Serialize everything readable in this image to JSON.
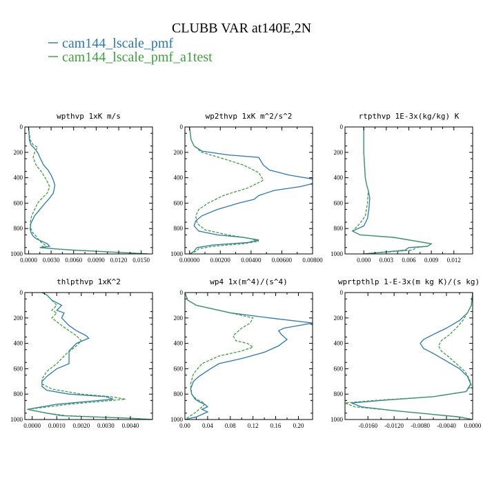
{
  "figure": {
    "title": "CLUBB VAR at140E,2N",
    "colors": {
      "series1": "#2878b4",
      "series2": "#3ca03c"
    }
  },
  "legend": [
    {
      "label": "cam144_lscale_pmf",
      "color": "#2878b4",
      "style": "solid"
    },
    {
      "label": "cam144_lscale_pmf_a1test",
      "color": "#3ca03c",
      "style": "dashed"
    }
  ],
  "chart_data": [
    {
      "type": "line",
      "title": "wpthvp  1xK m/s",
      "xlim": [
        -0.0005,
        0.0165
      ],
      "ylim": [
        1000,
        0
      ],
      "xticks": [
        "0.0000",
        "0.0030",
        "0.0060",
        "0.0090",
        "0.0120",
        "0.0150"
      ],
      "xtick_values": [
        0,
        0.003,
        0.006,
        0.009,
        0.012,
        0.015
      ],
      "yticks": [
        0,
        200,
        400,
        600,
        800,
        1000
      ],
      "y_axis": "left",
      "series": [
        {
          "name": "cam144_lscale_pmf",
          "x": [
            0.0,
            0.0001,
            0.0003,
            0.0008,
            0.0012,
            0.0015,
            0.002,
            0.0026,
            0.003,
            0.0033,
            0.0035,
            0.0033,
            0.0028,
            0.0022,
            0.0015,
            0.0008,
            0.0003,
            0.0002,
            0.0003,
            0.0006,
            0.001,
            0.0025,
            0.0028,
            0.0015,
            0.0035,
            0.006,
            0.016
          ],
          "y": [
            0,
            100,
            140,
            170,
            200,
            240,
            300,
            340,
            380,
            420,
            460,
            520,
            560,
            600,
            650,
            700,
            760,
            800,
            830,
            860,
            880,
            920,
            940,
            950,
            960,
            970,
            1000
          ]
        },
        {
          "name": "cam144_lscale_pmf_a1test",
          "x": [
            0.0,
            0.0002,
            0.0006,
            0.0012,
            0.0008,
            0.0006,
            0.001,
            0.0018,
            0.0024,
            0.0028,
            0.0025,
            0.0018,
            0.0012,
            0.0008,
            0.0004,
            0.0002,
            0.0003,
            0.0005,
            0.001,
            0.0015,
            0.0022,
            0.0016,
            0.0035,
            0.006,
            0.016
          ],
          "y": [
            0,
            100,
            140,
            160,
            200,
            240,
            300,
            360,
            420,
            470,
            520,
            560,
            600,
            650,
            700,
            760,
            800,
            830,
            860,
            900,
            930,
            950,
            960,
            970,
            1000
          ]
        }
      ]
    },
    {
      "type": "line",
      "title": "wp2thvp  1xK m^2/s^2",
      "xlim": [
        -0.0003,
        0.008
      ],
      "ylim": [
        1000,
        0
      ],
      "xticks": [
        "0.00000",
        "0.00200",
        "0.00400",
        "0.00600",
        "0.00800"
      ],
      "xtick_values": [
        0,
        0.002,
        0.004,
        0.006,
        0.008
      ],
      "yticks": [
        0,
        200,
        400,
        600,
        800,
        1000
      ],
      "y_axis": "left",
      "series": [
        {
          "name": "cam144_lscale_pmf",
          "x": [
            0.0,
            0.0001,
            0.0003,
            0.0008,
            0.0025,
            0.0045,
            0.0048,
            0.0052,
            0.0065,
            0.008,
            0.0082,
            0.0072,
            0.0055,
            0.0045,
            0.0042,
            0.0032,
            0.0018,
            0.0008,
            0.0004,
            0.0003,
            0.0006,
            0.0018,
            0.0035,
            0.0045,
            0.0038,
            0.0015,
            0.0005,
            0.0004,
            0.0003,
            0.0
          ],
          "y": [
            0,
            100,
            150,
            190,
            220,
            240,
            300,
            340,
            380,
            410,
            440,
            470,
            500,
            540,
            570,
            600,
            650,
            700,
            740,
            780,
            820,
            850,
            870,
            890,
            910,
            930,
            950,
            960,
            980,
            1000
          ]
        },
        {
          "name": "cam144_lscale_pmf_a1test",
          "x": [
            0.0,
            0.0001,
            0.0003,
            0.0008,
            0.0022,
            0.0035,
            0.0045,
            0.0048,
            0.0038,
            0.0022,
            0.0012,
            0.0006,
            0.0004,
            0.0005,
            0.001,
            0.0025,
            0.004,
            0.0045,
            0.0035,
            0.0015,
            0.0006,
            0.0004,
            0.0
          ],
          "y": [
            0,
            100,
            150,
            200,
            250,
            300,
            360,
            420,
            480,
            540,
            600,
            650,
            700,
            760,
            810,
            850,
            880,
            900,
            920,
            940,
            960,
            980,
            1000
          ]
        }
      ]
    },
    {
      "type": "line",
      "title": "rtpthvp  1E-3x(kg/kg) K",
      "xlim": [
        -0.0025,
        0.0145
      ],
      "ylim": [
        1000,
        0
      ],
      "xticks": [
        "0.000",
        "0.003",
        "0.006",
        "0.009",
        "0.012"
      ],
      "xtick_values": [
        0,
        0.003,
        0.006,
        0.009,
        0.012
      ],
      "yticks": [
        0,
        200,
        400,
        600,
        800,
        1000
      ],
      "y_axis": "left",
      "series": [
        {
          "name": "cam144_lscale_pmf",
          "x": [
            0.0,
            0.0,
            0.0001,
            0.0002,
            0.0004,
            0.0006,
            0.0008,
            0.0007,
            0.0005,
            0.0,
            -0.0015,
            -0.0005,
            0.004,
            0.009,
            0.0085,
            0.006,
            0.0055,
            0.0
          ],
          "y": [
            0,
            200,
            300,
            400,
            460,
            500,
            560,
            640,
            720,
            780,
            820,
            850,
            870,
            920,
            940,
            950,
            970,
            1000
          ]
        },
        {
          "name": "cam144_lscale_pmf_a1test",
          "x": [
            0.0,
            0.0,
            0.0001,
            0.0002,
            0.0004,
            0.0006,
            0.0005,
            0.0002,
            -0.0005,
            -0.0015,
            -0.0005,
            0.004,
            0.009,
            0.0085,
            0.007,
            0.0065,
            0.0
          ],
          "y": [
            0,
            200,
            300,
            400,
            460,
            500,
            600,
            700,
            760,
            820,
            850,
            870,
            920,
            940,
            950,
            970,
            1000
          ]
        }
      ]
    },
    {
      "type": "line",
      "title": "thlpthvp  1xK^2",
      "xlim": [
        -0.0003,
        0.0049
      ],
      "ylim": [
        1000,
        0
      ],
      "xticks": [
        "0.0000",
        "0.0010",
        "0.0020",
        "0.0030",
        "0.0040"
      ],
      "xtick_values": [
        0,
        0.001,
        0.002,
        0.003,
        0.004
      ],
      "yticks": [
        0,
        200,
        400,
        600,
        800,
        1000
      ],
      "y_axis": "left",
      "series": [
        {
          "name": "cam144_lscale_pmf",
          "x": [
            0.0004,
            0.0006,
            0.0008,
            0.0012,
            0.001,
            0.0013,
            0.0012,
            0.0015,
            0.0018,
            0.0022,
            0.0023,
            0.0018,
            0.0015,
            0.0015,
            0.001,
            0.0006,
            0.0004,
            0.0004,
            0.0006,
            0.0015,
            0.003,
            0.0033,
            0.001,
            -0.0002,
            0.0006,
            0.0012,
            0.004,
            0.0049
          ],
          "y": [
            0,
            20,
            60,
            100,
            140,
            160,
            200,
            260,
            300,
            340,
            360,
            400,
            460,
            560,
            600,
            660,
            700,
            740,
            770,
            800,
            820,
            840,
            880,
            920,
            950,
            970,
            990,
            1000
          ]
        },
        {
          "name": "cam144_lscale_pmf_a1test",
          "x": [
            0.0004,
            0.0006,
            0.0008,
            0.001,
            0.0008,
            0.001,
            0.0008,
            0.0012,
            0.0015,
            0.0018,
            0.002,
            0.0018,
            0.0014,
            0.001,
            0.0006,
            0.0004,
            0.0004,
            0.0008,
            0.002,
            0.0032,
            0.0038,
            0.0015,
            -0.0002,
            0.0006,
            0.0014,
            0.004,
            0.0049
          ],
          "y": [
            0,
            20,
            60,
            100,
            140,
            160,
            200,
            260,
            300,
            340,
            380,
            420,
            480,
            560,
            620,
            680,
            720,
            760,
            800,
            820,
            840,
            880,
            920,
            950,
            970,
            990,
            1000
          ]
        }
      ]
    },
    {
      "type": "line",
      "title": "wp4  1x(m^4)/(s^4)",
      "xlim": [
        0,
        0.225
      ],
      "ylim": [
        1000,
        0
      ],
      "xticks": [
        "0.00",
        "0.04",
        "0.08",
        "0.12",
        "0.16",
        "0.20"
      ],
      "xtick_values": [
        0,
        0.04,
        0.08,
        0.12,
        0.16,
        0.2
      ],
      "yticks": [
        0,
        200,
        400,
        600,
        800,
        1000
      ],
      "y_axis": "left",
      "series": [
        {
          "name": "cam144_lscale_pmf",
          "x": [
            0.0,
            0.005,
            0.02,
            0.08,
            0.15,
            0.225,
            0.2,
            0.175,
            0.165,
            0.17,
            0.18,
            0.165,
            0.14,
            0.1,
            0.06,
            0.045,
            0.025,
            0.015,
            0.01,
            0.012,
            0.018,
            0.025,
            0.035,
            0.04,
            0.03,
            0.04,
            0.03,
            0.02,
            0.0
          ],
          "y": [
            0,
            60,
            100,
            160,
            200,
            240,
            260,
            280,
            300,
            330,
            370,
            420,
            470,
            520,
            560,
            600,
            660,
            700,
            760,
            800,
            840,
            860,
            880,
            900,
            920,
            940,
            960,
            980,
            1000
          ]
        },
        {
          "name": "cam144_lscale_pmf_a1test",
          "x": [
            0.0,
            0.005,
            0.02,
            0.06,
            0.12,
            0.115,
            0.1,
            0.085,
            0.09,
            0.11,
            0.12,
            0.1,
            0.06,
            0.03,
            0.015,
            0.01,
            0.012,
            0.02,
            0.03,
            0.035,
            0.03,
            0.02,
            0.0
          ],
          "y": [
            0,
            60,
            100,
            140,
            200,
            240,
            280,
            340,
            380,
            400,
            430,
            460,
            500,
            560,
            640,
            720,
            800,
            840,
            860,
            880,
            900,
            940,
            1000
          ]
        }
      ]
    },
    {
      "type": "line",
      "title": "wprtpthlp  1-E-3x(m kg K)/(s kg)",
      "xlim": [
        -0.0195,
        0.0
      ],
      "ylim": [
        1000,
        0
      ],
      "xticks": [
        "-0.0160",
        "-0.0120",
        "-0.0080",
        "-0.0040",
        "0.0000"
      ],
      "xtick_values": [
        -0.016,
        -0.012,
        -0.008,
        -0.004,
        0.0
      ],
      "yticks": [
        0,
        200,
        400,
        600,
        800,
        1000
      ],
      "y_axis": "right",
      "series": [
        {
          "name": "cam144_lscale_pmf",
          "x": [
            0.0,
            -0.0002,
            -0.0008,
            -0.002,
            -0.004,
            -0.006,
            -0.0075,
            -0.008,
            -0.0075,
            -0.006,
            -0.004,
            -0.002,
            -0.0008,
            -0.0003,
            -0.001,
            -0.006,
            -0.014,
            -0.0185,
            -0.017,
            -0.012,
            -0.006,
            -0.002,
            0.0
          ],
          "y": [
            0,
            100,
            160,
            220,
            280,
            330,
            370,
            400,
            440,
            480,
            540,
            600,
            660,
            720,
            780,
            820,
            850,
            870,
            900,
            930,
            960,
            980,
            1000
          ]
        },
        {
          "name": "cam144_lscale_pmf_a1test",
          "x": [
            0.0,
            -0.0002,
            -0.0008,
            -0.0015,
            -0.0025,
            -0.0035,
            -0.0048,
            -0.0052,
            -0.0048,
            -0.0038,
            -0.0025,
            -0.0012,
            -0.0005,
            -0.0002,
            -0.001,
            -0.006,
            -0.015,
            -0.0195,
            -0.018,
            -0.012,
            -0.006,
            -0.002,
            0.0
          ],
          "y": [
            0,
            100,
            160,
            220,
            280,
            330,
            380,
            420,
            460,
            500,
            560,
            620,
            680,
            730,
            780,
            820,
            850,
            870,
            900,
            930,
            960,
            980,
            1000
          ]
        }
      ]
    }
  ]
}
